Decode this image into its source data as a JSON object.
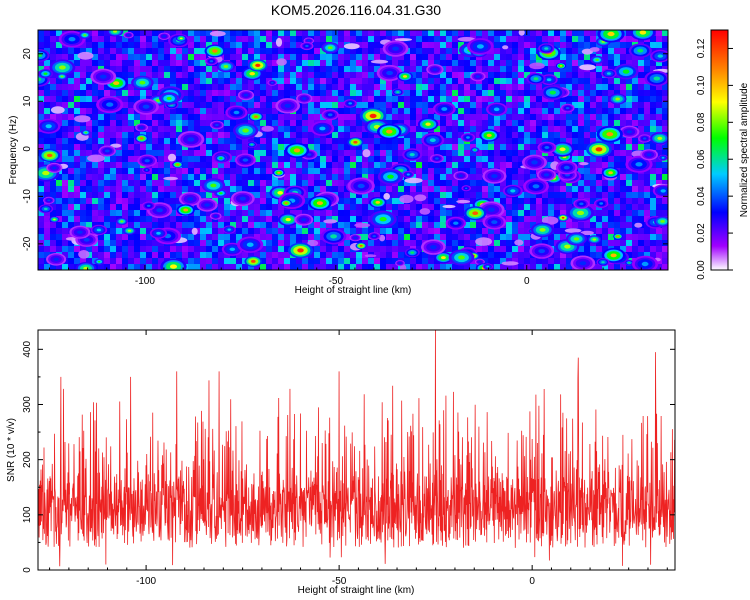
{
  "title": "KOM5.2026.116.04.31.G30",
  "colors": {
    "line": "#ee2222",
    "colormap": [
      "#ffffff",
      "#a000ff",
      "#0000ff",
      "#00ccff",
      "#00ff00",
      "#ffff00",
      "#ff8000",
      "#ff0000"
    ]
  },
  "chart_data": [
    {
      "type": "heatmap",
      "title": "",
      "xlabel": "Height of straight line (km)",
      "ylabel": "Frequency (Hz)",
      "xlim": [
        -128,
        37
      ],
      "ylim": [
        -25.5,
        25
      ],
      "xticks": [
        -100,
        -50,
        0
      ],
      "yticks": [
        -20,
        -10,
        0,
        10,
        20
      ],
      "colorbar": {
        "label": "Normalized spectral amplitude",
        "range": [
          0,
          0.13
        ],
        "ticks": [
          "0.00",
          "0.02",
          "0.04",
          "0.06",
          "0.08",
          "0.10",
          "0.12"
        ]
      },
      "description_values": "noise-like amplitude field, background ~0.01-0.03, scattered peaks up to ~0.12"
    },
    {
      "type": "line",
      "title": "",
      "xlabel": "Height of straight line (km)",
      "ylabel": "SNR (10 * v/v)",
      "xlim": [
        -128,
        37
      ],
      "ylim": [
        0,
        435
      ],
      "xticks": [
        -100,
        -50,
        0
      ],
      "yticks": [
        0,
        100,
        200,
        300,
        400
      ],
      "series": [
        {
          "name": "SNR",
          "x_start": -128,
          "x_end": 37,
          "mean": 115,
          "typical_max": 300,
          "notable_peaks": [
            {
              "x": -25,
              "y": 440
            },
            {
              "x": 32,
              "y": 395
            },
            {
              "x": 12,
              "y": 385
            },
            {
              "x": -92,
              "y": 360
            },
            {
              "x": -81,
              "y": 360
            },
            {
              "x": -50,
              "y": 360
            },
            {
              "x": -104,
              "y": 350
            },
            {
              "x": -122,
              "y": 350
            }
          ]
        }
      ]
    }
  ]
}
